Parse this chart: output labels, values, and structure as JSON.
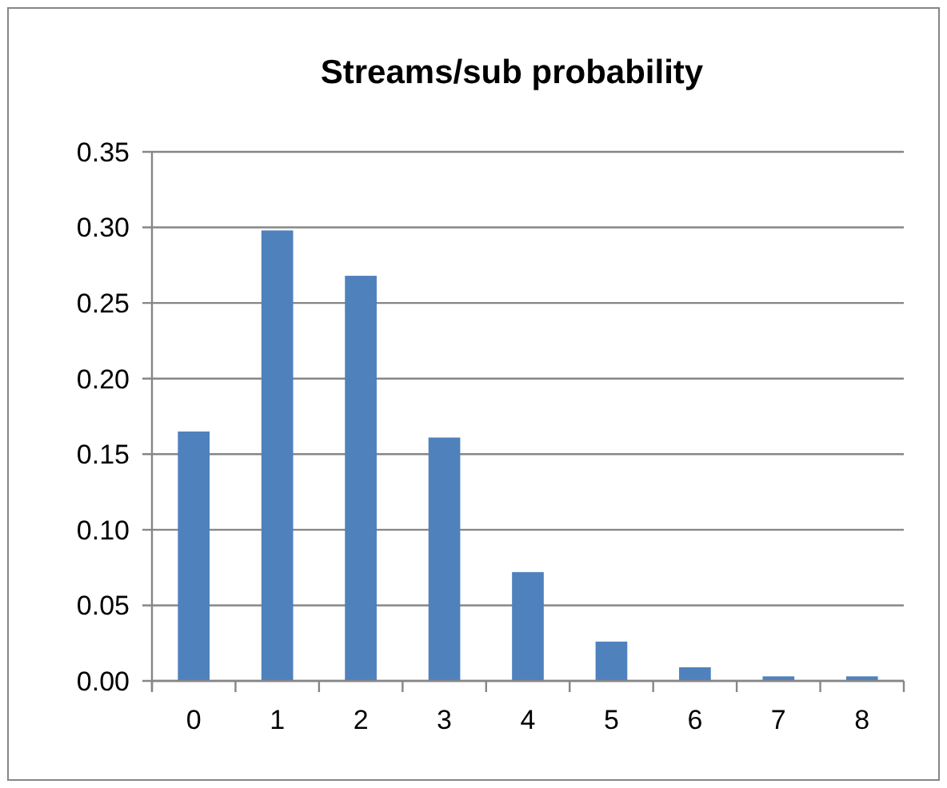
{
  "chart_data": {
    "type": "bar",
    "title": "Streams/sub probability",
    "categories": [
      "0",
      "1",
      "2",
      "3",
      "4",
      "5",
      "6",
      "7",
      "8"
    ],
    "values": [
      0.165,
      0.298,
      0.268,
      0.161,
      0.072,
      0.026,
      0.009,
      0.003,
      0.003
    ],
    "color": "#4f81bd",
    "ylim": [
      0,
      0.35
    ],
    "yticks": [
      {
        "value": 0,
        "label": "0.00"
      },
      {
        "value": 0.05,
        "label": "0.05"
      },
      {
        "value": 0.1,
        "label": "0.10"
      },
      {
        "value": 0.15,
        "label": "0.15"
      },
      {
        "value": 0.2,
        "label": "0.20"
      },
      {
        "value": 0.25,
        "label": "0.25"
      },
      {
        "value": 0.3,
        "label": "0.30"
      },
      {
        "value": 0.35,
        "label": "0.35"
      }
    ],
    "grid": "y"
  }
}
